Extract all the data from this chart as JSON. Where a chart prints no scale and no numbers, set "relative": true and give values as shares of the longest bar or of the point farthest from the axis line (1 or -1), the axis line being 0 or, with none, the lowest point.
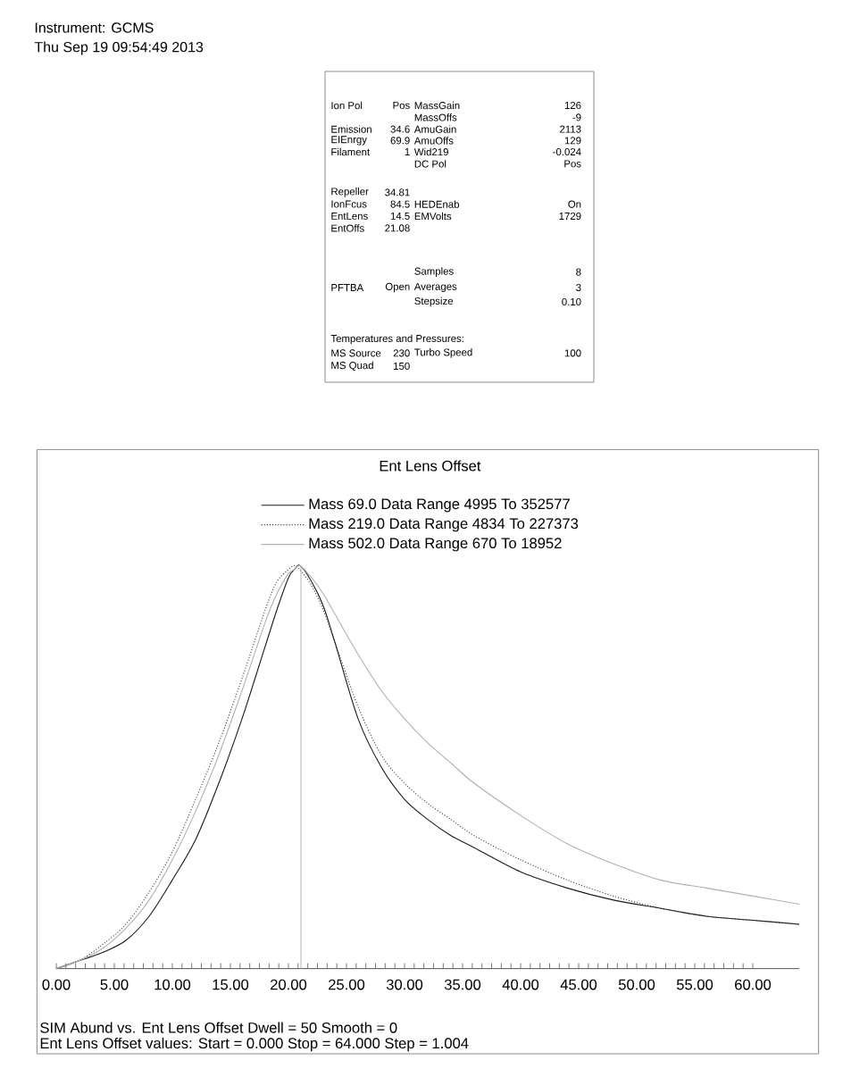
{
  "chart_data": [
    {
      "type": "other",
      "annotations": [
        "Instrument: GCMS",
        "Thu Sep 19 09:54:49 2013",
        "Ion Pol",
        "Pos",
        "MassGain",
        "126",
        "MassOffs",
        "-9",
        "Emission",
        "34.6",
        "AmuGain",
        "2113",
        "EIEnrgy",
        "69.9",
        "AmuOffs",
        "129",
        "Filament",
        "1",
        "Wid219",
        "-0.024",
        "DC Pol",
        "Pos",
        "Repeller",
        "34.81",
        "IonFcus",
        "84.5",
        "HEDEnab",
        "On",
        "EntLens",
        "14.5",
        "EMVolts",
        "1729",
        "EntOffs",
        "21.08",
        "Samples",
        "8",
        "PFTBA",
        "Open",
        "Averages",
        "3",
        "Stepsize",
        "0.10",
        "Temperatures and Pressures:",
        "MS Source",
        "230",
        "Turbo Speed",
        "100",
        "MS Quad",
        "150"
      ]
    },
    {
      "type": "line",
      "title": "Ent Lens Offset",
      "relative": true,
      "legend": "top",
      "tick_labels": "x",
      "x": [
        0,
        2,
        4,
        6,
        8,
        10,
        12,
        14,
        16,
        18,
        19,
        20,
        20.5,
        21,
        22,
        23,
        24,
        26,
        28,
        30,
        32,
        34,
        36,
        40,
        44,
        48,
        52,
        56,
        60,
        64
      ],
      "xlim": [
        0,
        64
      ],
      "xticks": [
        {
          "value": 0,
          "label": "0.00"
        },
        {
          "value": 5,
          "label": "5.00"
        },
        {
          "value": 10,
          "label": "10.00"
        },
        {
          "value": 15,
          "label": "15.00"
        },
        {
          "value": 20,
          "label": "20.00"
        },
        {
          "value": 25,
          "label": "25.00"
        },
        {
          "value": 30,
          "label": "30.00"
        },
        {
          "value": 35,
          "label": "35.00"
        },
        {
          "value": 40,
          "label": "40.00"
        },
        {
          "value": 45,
          "label": "45.00"
        },
        {
          "value": 50,
          "label": "50.00"
        },
        {
          "value": 55,
          "label": "55.00"
        },
        {
          "value": 60,
          "label": "60.00"
        }
      ],
      "series": [
        {
          "name": "Mass 69.0 Data Range 4995 To 352577",
          "color": "#1a1a1a",
          "line_style": "solid",
          "values": [
            0,
            0.02,
            0.04,
            0.07,
            0.13,
            0.22,
            0.32,
            0.46,
            0.62,
            0.8,
            0.89,
            0.97,
            0.99,
            1,
            0.96,
            0.9,
            0.81,
            0.62,
            0.5,
            0.42,
            0.37,
            0.33,
            0.3,
            0.24,
            0.2,
            0.17,
            0.15,
            0.13,
            0.12,
            0.11
          ]
        },
        {
          "name": "Mass 219.0 Data Range 4834 To 227373",
          "color": "#3a3a3a",
          "line_style": "dotted",
          "values": [
            0,
            0.02,
            0.06,
            0.11,
            0.19,
            0.29,
            0.42,
            0.56,
            0.72,
            0.89,
            0.96,
            0.99,
            1,
            0.99,
            0.95,
            0.89,
            0.81,
            0.65,
            0.53,
            0.46,
            0.41,
            0.37,
            0.33,
            0.27,
            0.22,
            0.18,
            0.15,
            0.13,
            0.12,
            0.11
          ]
        },
        {
          "name": "Mass 502.0 Data Range 670 To 18952",
          "color": "#b0b0b0",
          "line_style": "solid",
          "values": [
            0,
            0.02,
            0.05,
            0.1,
            0.17,
            0.27,
            0.39,
            0.53,
            0.69,
            0.86,
            0.93,
            0.98,
            0.99,
            1,
            0.97,
            0.93,
            0.88,
            0.78,
            0.69,
            0.62,
            0.56,
            0.51,
            0.46,
            0.38,
            0.31,
            0.26,
            0.22,
            0.2,
            0.18,
            0.16
          ]
        }
      ],
      "ref_lines": [
        {
          "axis": "x",
          "value": 21.08,
          "color": "#aaaaaa"
        }
      ],
      "annotations": [
        "SIM Abund vs. Ent Lens Offset Dwell = 50 Smooth = 0",
        "Ent Lens Offset values: Start = 0.000 Stop = 64.000 Step = 1.004"
      ]
    }
  ]
}
